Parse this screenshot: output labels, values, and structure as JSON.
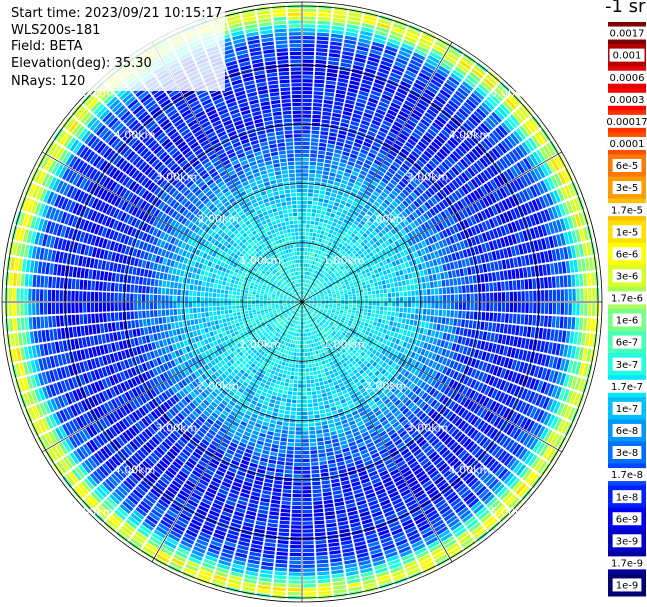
{
  "header": {
    "start_time": "Start time: 2023/09/21 10:15:17",
    "device": "WLS200s-181",
    "field": "Field: BETA",
    "elevation": "Elevation(deg): 35.30",
    "nrays": "NRays: 120"
  },
  "chart_data": {
    "type": "heatmap",
    "projection": "polar-ppi",
    "field": "BETA",
    "elevation_deg": 35.3,
    "n_rays": 120,
    "scale": "log",
    "unit_label": "-1 sr",
    "range_max_km": 5.0,
    "range_rings_km": [
      1,
      2,
      3,
      4,
      5
    ],
    "ring_labels": [
      "1.00km",
      "2.00km",
      "3.00km",
      "4.00km",
      "5.00km"
    ],
    "spokes": 12,
    "grid": true,
    "value_profile_by_range": [
      {
        "range_km": 0.1,
        "beta": 2.5e-07
      },
      {
        "range_km": 1.0,
        "beta": 2e-07
      },
      {
        "range_km": 2.0,
        "beta": 1e-07
      },
      {
        "range_km": 2.5,
        "beta": 3e-08
      },
      {
        "range_km": 3.0,
        "beta": 1e-08
      },
      {
        "range_km": 4.0,
        "beta": 8e-09
      },
      {
        "range_km": 4.5,
        "beta": 2e-08
      },
      {
        "range_km": 4.9,
        "beta": 6e-06
      },
      {
        "range_km": 5.2,
        "beta": 5e-08
      }
    ],
    "colorbar": {
      "position": "right",
      "labels": [
        "0.0017",
        "0.001",
        "0.0006",
        "0.0003",
        "0.00017",
        "0.0001",
        "6e-5",
        "3e-5",
        "1.7e-5",
        "1e-5",
        "6e-6",
        "3e-6",
        "1.7e-6",
        "1e-6",
        "6e-7",
        "3e-7",
        "1.7e-7",
        "1e-7",
        "6e-8",
        "3e-8",
        "1.7e-8",
        "1e-8",
        "6e-9",
        "3e-9",
        "1.7e-9",
        "1e-9"
      ],
      "colors": [
        "#800000",
        "#b40000",
        "#e60000",
        "#ff0000",
        "#ff3000",
        "#ff5000",
        "#ff7a00",
        "#ff9a00",
        "#ffc000",
        "#ffe000",
        "#ffff00",
        "#d8ff28",
        "#a8ff58",
        "#78ff88",
        "#48ffb8",
        "#20ffe0",
        "#00e8ff",
        "#00c0ff",
        "#0098ff",
        "#0070ff",
        "#0048ff",
        "#0020ff",
        "#0000f0",
        "#0000c8",
        "#00009c",
        "#000070"
      ]
    }
  }
}
